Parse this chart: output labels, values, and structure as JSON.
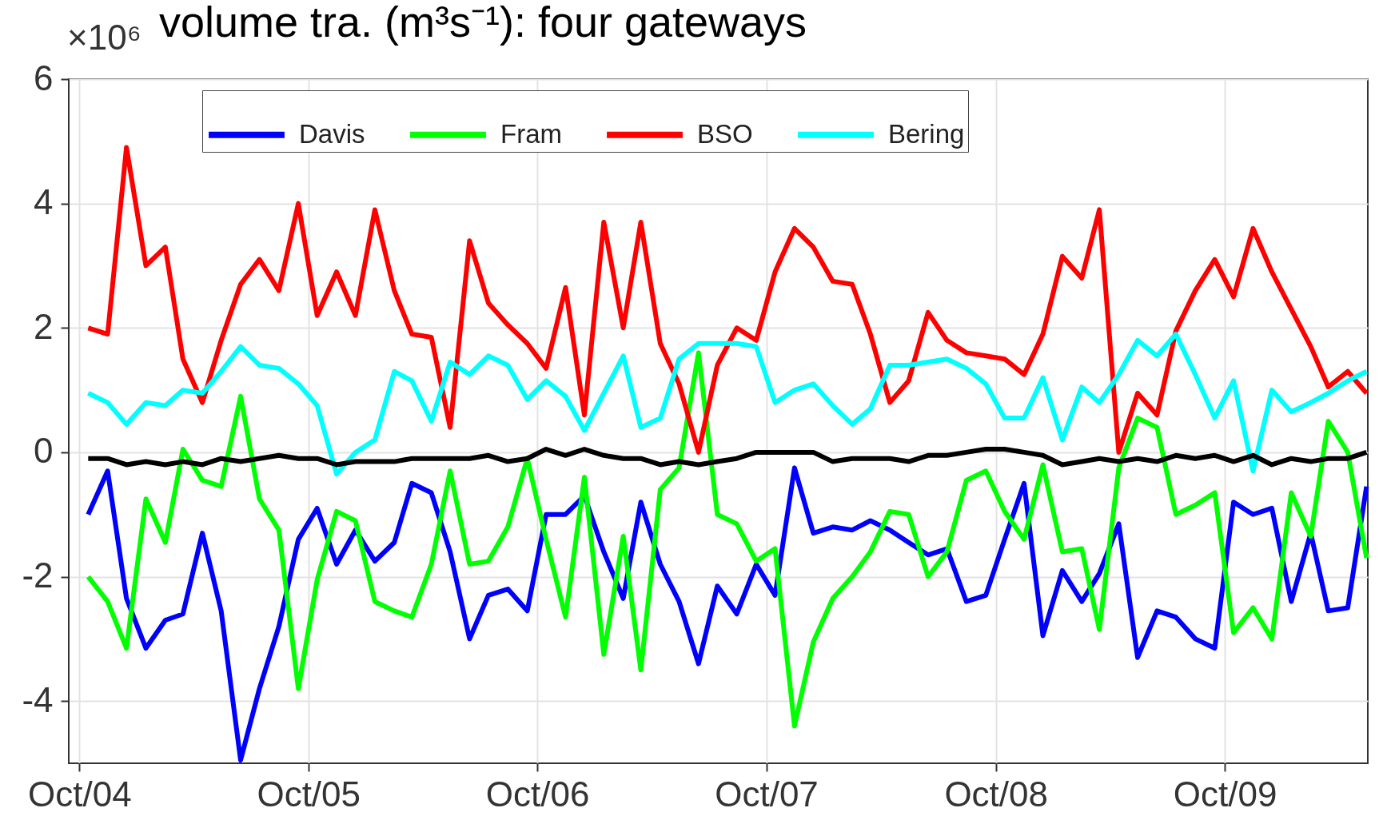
{
  "chart_data": {
    "type": "line",
    "title": "volume tra. (m³s⁻¹): four gateways",
    "annotations": [
      "×10⁶"
    ],
    "x": [
      "2004-10-15",
      "2004-11-15",
      "2004-12-15",
      "2005-01-15",
      "2005-02-15",
      "2005-03-15",
      "2005-04-15",
      "2005-05-15",
      "2005-06-15",
      "2005-07-15",
      "2005-08-15",
      "2005-09-15",
      "2005-10-15",
      "2005-11-15",
      "2005-12-15",
      "2006-01-15",
      "2006-02-15",
      "2006-03-15",
      "2006-04-15",
      "2006-05-15",
      "2006-06-15",
      "2006-07-15",
      "2006-08-15",
      "2006-09-15",
      "2006-10-15",
      "2006-11-15",
      "2006-12-15",
      "2007-01-15",
      "2007-02-15",
      "2007-03-15",
      "2007-04-15",
      "2007-05-15",
      "2007-06-15",
      "2007-07-15",
      "2007-08-15",
      "2007-09-15",
      "2007-10-15",
      "2007-11-15",
      "2007-12-15",
      "2008-01-15",
      "2008-02-15",
      "2008-03-15",
      "2008-04-15",
      "2008-05-15",
      "2008-06-15",
      "2008-07-15",
      "2008-08-15",
      "2008-09-15",
      "2008-10-15",
      "2008-11-15",
      "2008-12-15",
      "2009-01-15",
      "2009-02-15",
      "2009-03-15",
      "2009-04-15",
      "2009-05-15",
      "2009-06-15",
      "2009-07-15",
      "2009-08-15",
      "2009-09-15",
      "2009-10-15",
      "2009-11-15",
      "2009-12-15",
      "2010-01-15",
      "2010-02-15",
      "2010-03-15",
      "2010-04-15",
      "2010-05-15"
    ],
    "series": [
      {
        "name": "Davis",
        "color": "#0000ff",
        "values": [
          -1.0,
          -0.3,
          -2.35,
          -3.15,
          -2.7,
          -2.6,
          -1.3,
          -2.55,
          -4.95,
          -3.8,
          -2.8,
          -1.4,
          -0.9,
          -1.8,
          -1.25,
          -1.75,
          -1.45,
          -0.5,
          -0.65,
          -1.6,
          -3.0,
          -2.3,
          -2.2,
          -2.55,
          -1.0,
          -1.0,
          -0.7,
          -1.6,
          -2.35,
          -0.8,
          -1.8,
          -2.4,
          -3.4,
          -2.15,
          -2.6,
          -1.8,
          -2.3,
          -0.25,
          -1.3,
          -1.2,
          -1.25,
          -1.1,
          -1.25,
          -1.45,
          -1.65,
          -1.55,
          -2.4,
          -2.3,
          -1.4,
          -0.5,
          -2.95,
          -1.9,
          -2.4,
          -1.95,
          -1.15,
          -3.3,
          -2.55,
          -2.65,
          -3.0,
          -3.15,
          -0.8,
          -1.0,
          -0.9,
          -2.4,
          -1.3,
          -2.55,
          -2.5,
          -0.55
        ]
      },
      {
        "name": "Fram",
        "color": "#00ff00",
        "values": [
          -2.0,
          -2.4,
          -3.15,
          -0.75,
          -1.45,
          0.05,
          -0.45,
          -0.55,
          0.9,
          -0.75,
          -1.25,
          -3.8,
          -2.05,
          -0.95,
          -1.1,
          -2.4,
          -2.55,
          -2.65,
          -1.8,
          -0.3,
          -1.8,
          -1.75,
          -1.2,
          -0.1,
          -1.4,
          -2.65,
          -0.4,
          -3.25,
          -1.35,
          -3.5,
          -0.6,
          -0.25,
          1.6,
          -1.0,
          -1.15,
          -1.75,
          -1.55,
          -4.4,
          -3.05,
          -2.35,
          -2.0,
          -1.6,
          -0.95,
          -1.0,
          -2.0,
          -1.6,
          -0.45,
          -0.3,
          -0.95,
          -1.4,
          -0.2,
          -1.6,
          -1.55,
          -2.85,
          -0.25,
          0.55,
          0.4,
          -1.0,
          -0.85,
          -0.65,
          -2.9,
          -2.5,
          -3.0,
          -0.65,
          -1.35,
          0.5,
          0.0,
          -1.7
        ]
      },
      {
        "name": "BSO",
        "color": "#ff0000",
        "values": [
          2.0,
          1.9,
          4.9,
          3.0,
          3.3,
          1.5,
          0.8,
          1.8,
          2.7,
          3.1,
          2.6,
          4.0,
          2.2,
          2.9,
          2.2,
          3.9,
          2.6,
          1.9,
          1.85,
          0.4,
          3.4,
          2.4,
          2.05,
          1.75,
          1.35,
          2.65,
          0.6,
          3.7,
          2.0,
          3.7,
          1.75,
          1.1,
          0.0,
          1.4,
          2.0,
          1.8,
          2.9,
          3.6,
          3.3,
          2.75,
          2.7,
          1.9,
          0.8,
          1.15,
          2.25,
          1.8,
          1.6,
          1.55,
          1.5,
          1.25,
          1.9,
          3.15,
          2.8,
          3.9,
          0.0,
          0.95,
          0.6,
          1.95,
          2.6,
          3.1,
          2.5,
          3.6,
          2.9,
          2.3,
          1.7,
          1.05,
          1.3,
          0.95
        ]
      },
      {
        "name": "Bering",
        "color": "#00ffff",
        "values": [
          0.95,
          0.8,
          0.45,
          0.8,
          0.75,
          1.0,
          0.95,
          1.3,
          1.7,
          1.4,
          1.35,
          1.1,
          0.75,
          -0.35,
          0.0,
          0.2,
          1.3,
          1.15,
          0.5,
          1.45,
          1.25,
          1.55,
          1.4,
          0.85,
          1.15,
          0.9,
          0.35,
          0.95,
          1.55,
          0.4,
          0.55,
          1.5,
          1.75,
          1.75,
          1.75,
          1.7,
          0.8,
          1.0,
          1.1,
          0.75,
          0.45,
          0.7,
          1.4,
          1.4,
          1.45,
          1.5,
          1.35,
          1.1,
          0.55,
          0.55,
          1.2,
          0.2,
          1.05,
          0.8,
          1.25,
          1.8,
          1.55,
          1.9,
          1.25,
          0.55,
          1.15,
          -0.3,
          1.0,
          0.65,
          0.8,
          0.95,
          1.15,
          1.3
        ]
      },
      {
        "color": "#000000",
        "values": [
          -0.1,
          -0.1,
          -0.2,
          -0.15,
          -0.2,
          -0.15,
          -0.2,
          -0.1,
          -0.15,
          -0.1,
          -0.05,
          -0.1,
          -0.1,
          -0.2,
          -0.15,
          -0.15,
          -0.15,
          -0.1,
          -0.1,
          -0.1,
          -0.1,
          -0.05,
          -0.15,
          -0.1,
          0.05,
          -0.05,
          0.05,
          -0.05,
          -0.1,
          -0.1,
          -0.2,
          -0.15,
          -0.2,
          -0.15,
          -0.1,
          0.0,
          0.0,
          0.0,
          0.0,
          -0.15,
          -0.1,
          -0.1,
          -0.1,
          -0.15,
          -0.05,
          -0.05,
          0.0,
          0.05,
          0.05,
          0.0,
          -0.05,
          -0.2,
          -0.15,
          -0.1,
          -0.15,
          -0.1,
          -0.15,
          -0.05,
          -0.1,
          -0.05,
          -0.15,
          -0.05,
          -0.2,
          -0.1,
          -0.15,
          -0.1,
          -0.1,
          0.0
        ]
      }
    ],
    "xlim": [
      "2004-09-14",
      "2010-05-17"
    ],
    "xticks": [
      {
        "value": "2004-10-01",
        "label": "Oct/04"
      },
      {
        "value": "2005-10-01",
        "label": "Oct/05"
      },
      {
        "value": "2006-10-01",
        "label": "Oct/06"
      },
      {
        "value": "2007-10-01",
        "label": "Oct/07"
      },
      {
        "value": "2008-10-01",
        "label": "Oct/08"
      },
      {
        "value": "2009-10-01",
        "label": "Oct/09"
      }
    ],
    "ylim": [
      -5,
      6
    ],
    "yticks": [
      -4,
      -2,
      0,
      2,
      4,
      6
    ],
    "grid": true,
    "legend": "top",
    "line_style": "solid"
  }
}
